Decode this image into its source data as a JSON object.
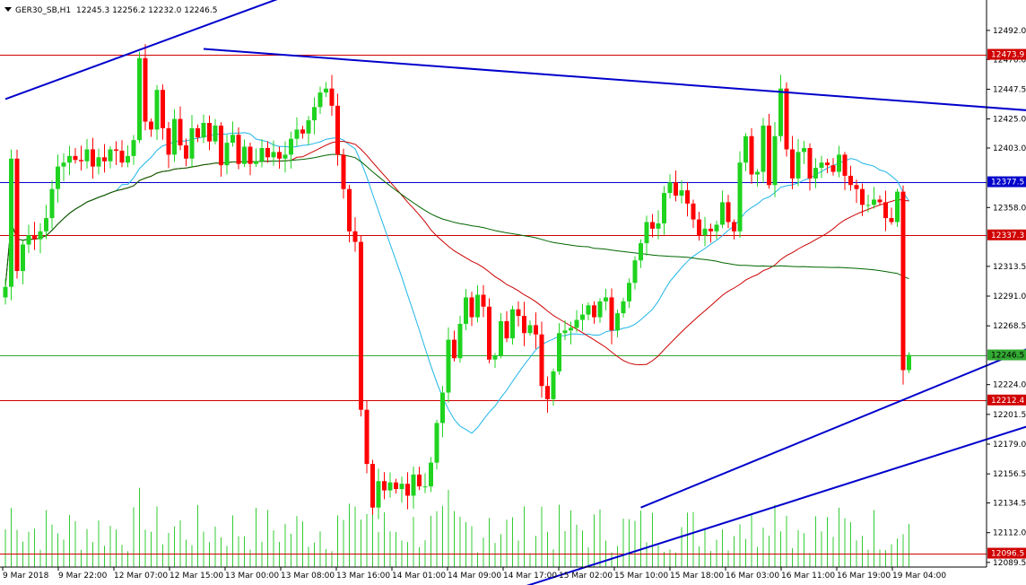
{
  "header": {
    "symbol": "GER30_SB,H1",
    "ohlc": "12245.3 12256.2 12232.0 12246.5"
  },
  "colors": {
    "up": "#1fd31f",
    "down": "#ff0000",
    "trend": "#0000cc",
    "ma_fast": "#1fb5e8",
    "ma_mid": "#cc0000",
    "ma_slow": "#006600",
    "hline_red": "#d00000",
    "hline_blue": "#0000cc",
    "hline_green": "#33aa33",
    "volume": "#33cc33",
    "volume_mid": "#cc2222"
  },
  "chart_data": {
    "type": "candlestick",
    "y_axis": {
      "range": [
        12086,
        12515
      ],
      "ticks": [
        "12492.0",
        "12470.0",
        "12447.5",
        "12425.0",
        "12403.0",
        "12358.0",
        "12313.5",
        "12291.0",
        "12268.5",
        "12224.0",
        "12201.5",
        "12179.0",
        "12156.5",
        "12134.5",
        "12112.0",
        "12089.5"
      ]
    },
    "x_axis": {
      "labels": [
        "9 Mar 2018",
        "9 Mar 22:00",
        "12 Mar 07:00",
        "12 Mar 15:00",
        "13 Mar 00:00",
        "13 Mar 08:00",
        "13 Mar 16:00",
        "14 Mar 01:00",
        "14 Mar 09:00",
        "14 Mar 17:00",
        "15 Mar 02:00",
        "15 Mar 10:00",
        "15 Mar 18:00",
        "16 Mar 03:00",
        "16 Mar 11:00",
        "16 Mar 19:00",
        "19 Mar 04:00"
      ]
    },
    "levels": [
      {
        "value": 12473.9,
        "label": "12473.9",
        "style": "red"
      },
      {
        "value": 12377.5,
        "label": "12377.5",
        "style": "blue"
      },
      {
        "value": 12337.3,
        "label": "12337.3",
        "style": "red"
      },
      {
        "value": 12246.5,
        "label": "12246.5",
        "style": "green"
      },
      {
        "value": 12212.4,
        "label": "12212.4",
        "style": "red"
      },
      {
        "value": 12096.5,
        "label": "12096.5",
        "style": "red"
      }
    ],
    "closes": [
      12298,
      12395,
      12310,
      12330,
      12337,
      12334,
      12340,
      12350,
      12372,
      12389,
      12392,
      12397,
      12394,
      12393,
      12402,
      12389,
      12396,
      12393,
      12402,
      12401,
      12392,
      12397,
      12409,
      12471,
      12423,
      12417,
      12447,
      12418,
      12398,
      12425,
      12405,
      12395,
      12418,
      12411,
      12422,
      12408,
      12420,
      12390,
      12407,
      12413,
      12391,
      12404,
      12391,
      12393,
      12403,
      12396,
      12400,
      12395,
      12398,
      12410,
      12417,
      12414,
      12424,
      12434,
      12445,
      12448,
      12435,
      12398,
      12372,
      12340,
      12332,
      12205,
      12164,
      12131,
      12151,
      12144,
      12150,
      12145,
      12149,
      12140,
      12156,
      12147,
      12147,
      12165,
      12195,
      12218,
      12258,
      12244,
      12270,
      12290,
      12275,
      12292,
      12283,
      12243,
      12246,
      12272,
      12259,
      12281,
      12276,
      12263,
      12269,
      12262,
      12223,
      12213,
      12234,
      12263,
      12265,
      12267,
      12273,
      12277,
      12284,
      12275,
      12287,
      12290,
      12265,
      12278,
      12287,
      12301,
      12318,
      12331,
      12347,
      12342,
      12346,
      12369,
      12377,
      12367,
      12371,
      12361,
      12349,
      12337,
      12342,
      12340,
      12345,
      12362,
      12347,
      12340,
      12392,
      12412,
      12383,
      12385,
      12420,
      12375,
      12412,
      12448,
      12402,
      12380,
      12400,
      12403,
      12380,
      12388,
      12392,
      12390,
      12385,
      12398,
      12382,
      12375,
      12372,
      12360,
      12360,
      12364,
      12362,
      12350,
      12347,
      12370,
      12235,
      12246.5
    ],
    "volume_median": 12096.5,
    "trendlines": [
      {
        "x1": 0,
        "y1": 12440,
        "x2": 66,
        "y2": 12547
      },
      {
        "x1": 34,
        "y1": 12478,
        "x2": 247,
        "y2": 12408
      },
      {
        "x1": 109,
        "y1": 12131,
        "x2": 252,
        "y2": 12390
      },
      {
        "x1": 86,
        "y1": 12067,
        "x2": 259,
        "y2": 12310
      }
    ]
  }
}
